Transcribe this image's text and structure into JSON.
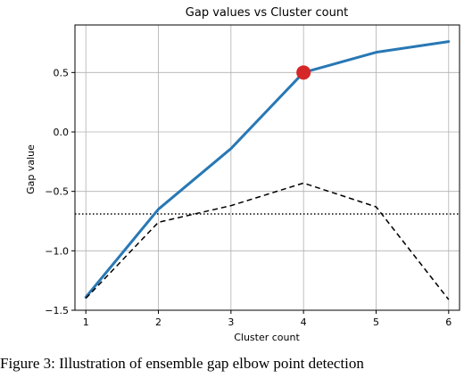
{
  "chart_data": {
    "type": "line",
    "title": "Gap values vs Cluster count",
    "xlabel": "Cluster count",
    "ylabel": "Gap value",
    "xlim": [
      0.85,
      6.15
    ],
    "ylim": [
      -1.5,
      0.9
    ],
    "x_ticks": [
      1,
      2,
      3,
      4,
      5,
      6
    ],
    "y_ticks": [
      0.5,
      0.0,
      -0.5,
      -1.0,
      -1.5
    ],
    "y_tick_labels": [
      "0.5",
      "0.0",
      "−0.5",
      "−1.0",
      "−1.5"
    ],
    "grid": true,
    "series": [
      {
        "style": "solid",
        "color": "#2878b5",
        "x": [
          1,
          2,
          3,
          4,
          5,
          6
        ],
        "y": [
          -1.39,
          -0.65,
          -0.14,
          0.5,
          0.67,
          0.76
        ]
      },
      {
        "style": "dashed",
        "color": "#000000",
        "x": [
          1,
          2,
          3,
          4,
          5,
          6
        ],
        "y": [
          -1.4,
          -0.76,
          -0.62,
          -0.43,
          -0.63,
          -1.41
        ]
      }
    ],
    "hline": {
      "y": -0.69,
      "style": "dotted",
      "color": "#000000"
    },
    "highlight_point": {
      "x": 4,
      "y": 0.5,
      "color": "#d62728"
    }
  },
  "caption": "Figure 3: Illustration of ensemble gap elbow point detection"
}
